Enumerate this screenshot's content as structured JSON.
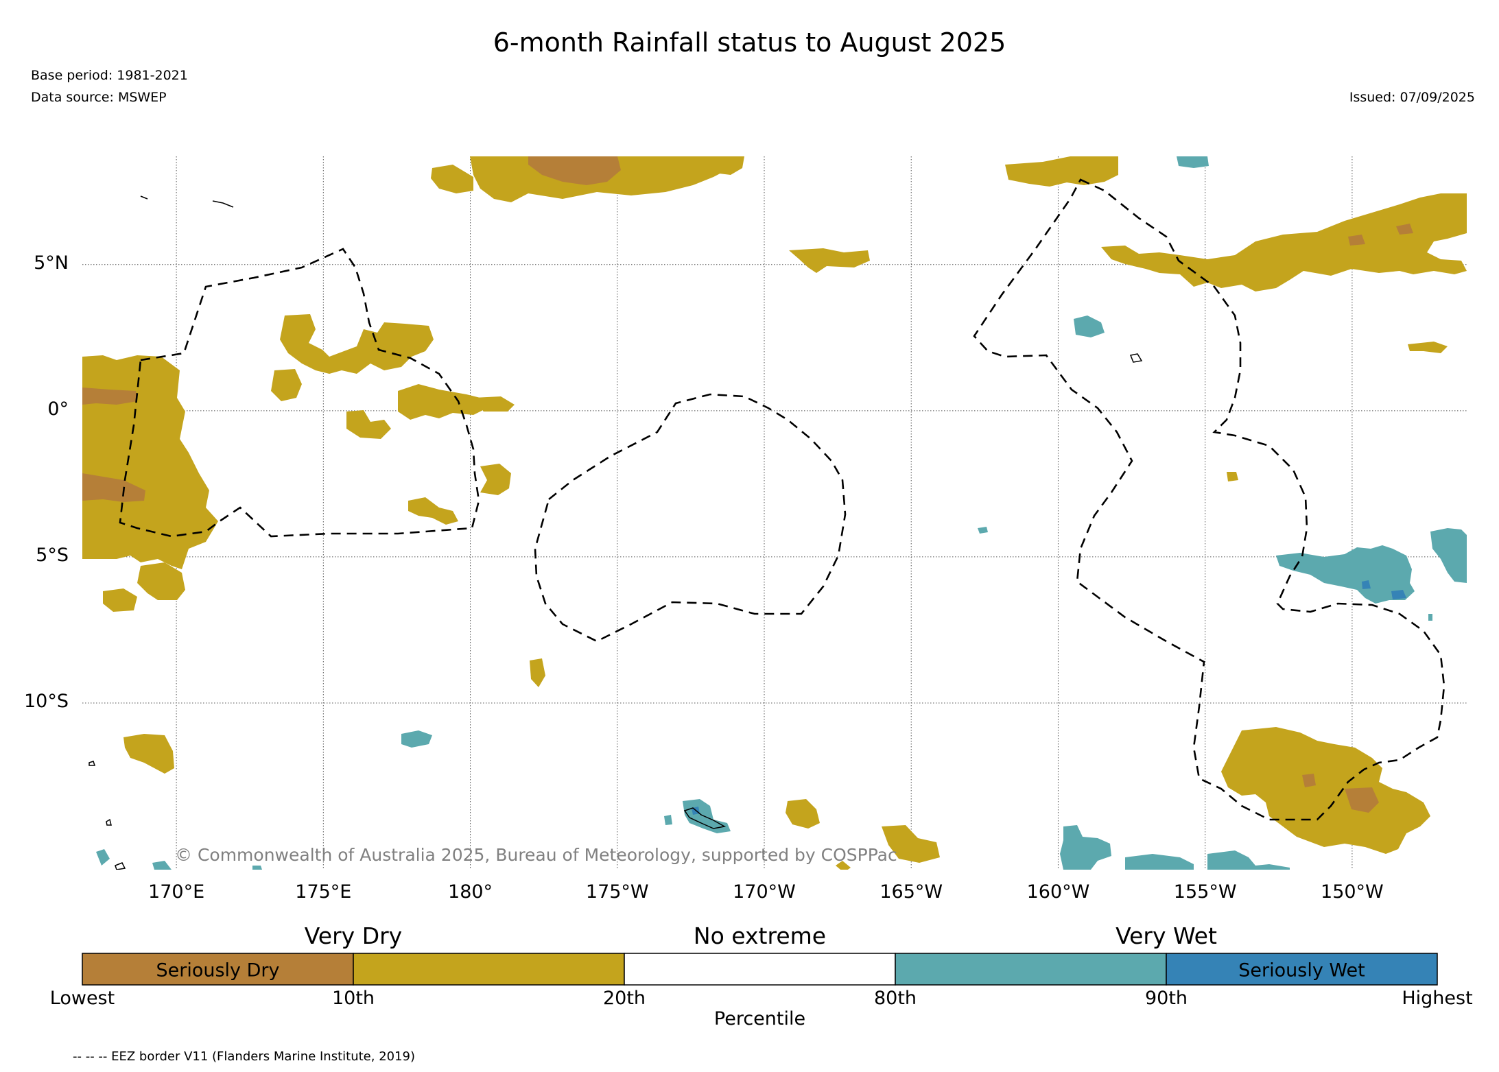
{
  "header": {
    "title": "6-month Rainfall status to August 2025",
    "base_period": "Base period: 1981-2021",
    "data_source": "Data source: MSWEP",
    "issued": "Issued: 07/09/2025"
  },
  "map": {
    "extent": {
      "lon_min": 166.8,
      "lon_max": 213.9,
      "lat_min": -15.7,
      "lat_max": 8.7
    },
    "lat_ticks": [
      {
        "value": 5,
        "label": "5°N"
      },
      {
        "value": 0,
        "label": "0°"
      },
      {
        "value": -5,
        "label": "5°S"
      },
      {
        "value": -10,
        "label": "10°S"
      }
    ],
    "lon_ticks": [
      {
        "value": 170,
        "label": "170°E"
      },
      {
        "value": 175,
        "label": "175°E"
      },
      {
        "value": 180,
        "label": "180°"
      },
      {
        "value": 185,
        "label": "175°W"
      },
      {
        "value": 190,
        "label": "170°W"
      },
      {
        "value": 195,
        "label": "165°W"
      },
      {
        "value": 200,
        "label": "160°W"
      },
      {
        "value": 205,
        "label": "155°W"
      },
      {
        "value": 210,
        "label": "150°W"
      }
    ],
    "copyright": "© Commonwealth of Australia 2025, Bureau of Meteorology, supported by COSPPac"
  },
  "legend": {
    "categories": [
      {
        "label": "Very Dry",
        "center_pct": 20
      },
      {
        "label": "No extreme",
        "center_pct": 50
      },
      {
        "label": "Very Wet",
        "center_pct": 80
      }
    ],
    "bins": [
      {
        "name": "seriously-dry",
        "label": "Seriously Dry",
        "color": "#b57f38"
      },
      {
        "name": "very-dry",
        "label": "",
        "color": "#c4a41d"
      },
      {
        "name": "no-extreme",
        "label": "",
        "color": "#ffffff"
      },
      {
        "name": "very-wet",
        "label": "",
        "color": "#5ca9ae"
      },
      {
        "name": "seriously-wet",
        "label": "Seriously Wet",
        "color": "#3583b6"
      }
    ],
    "tick_labels": [
      "Lowest",
      "10th",
      "20th",
      "80th",
      "90th",
      "Highest"
    ],
    "axis_label": "Percentile"
  },
  "footnote": "-- -- -- EEZ border V11 (Flanders Marine Institute, 2019)"
}
